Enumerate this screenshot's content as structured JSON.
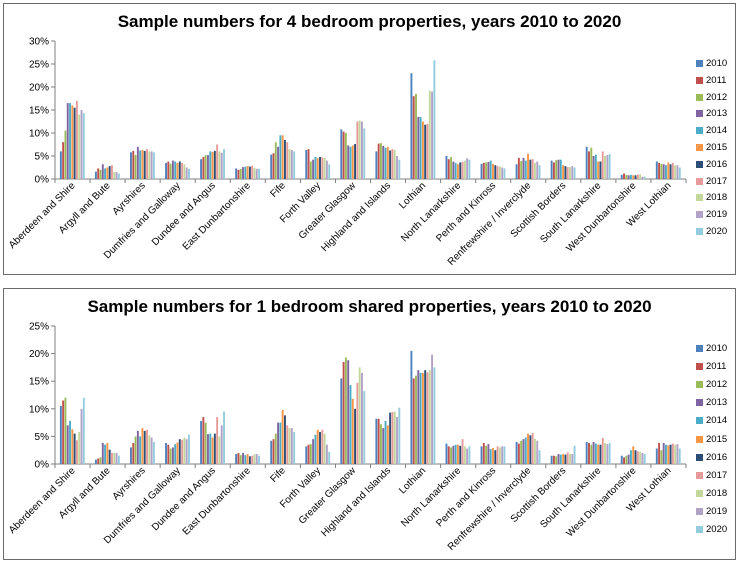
{
  "chart_data": [
    {
      "type": "bar",
      "title": "Sample numbers for 4 bedroom properties, years 2010 to 2020",
      "xlabel": "",
      "ylabel": "",
      "ylim": [
        0,
        30
      ],
      "yticks": [
        "0%",
        "5%",
        "10%",
        "15%",
        "20%",
        "25%",
        "30%"
      ],
      "legend_position": "right",
      "grid": false,
      "categories": [
        "Aberdeen and Shire",
        "Argyll and Bute",
        "Ayrshires",
        "Dumfries and Galloway",
        "Dundee and Angus",
        "East Dunbartonshire",
        "Fife",
        "Forth Valley",
        "Greater Glasgow",
        "Highland and Islands",
        "Lothian",
        "North Lanarkshire",
        "Perth and Kinross",
        "Renfrewshire / Inverclyde",
        "Scottish Borders",
        "South Lanarkshire",
        "West Dunbartonshire",
        "West Lothian"
      ],
      "series": [
        {
          "name": "2010",
          "color": "#4F81BD",
          "values": [
            6.0,
            1.6,
            5.8,
            3.5,
            4.3,
            2.3,
            5.3,
            6.3,
            10.8,
            6.0,
            23.0,
            5.0,
            3.3,
            3.2,
            4.0,
            7.0,
            0.9,
            3.8
          ]
        },
        {
          "name": "2011",
          "color": "#C0504D",
          "values": [
            8.0,
            2.3,
            6.1,
            3.8,
            4.8,
            2.0,
            5.6,
            6.5,
            10.3,
            7.7,
            18.0,
            4.3,
            3.5,
            4.6,
            3.6,
            6.0,
            1.2,
            3.5
          ]
        },
        {
          "name": "2012",
          "color": "#9BBB59",
          "values": [
            10.5,
            2.0,
            5.2,
            3.3,
            5.2,
            2.2,
            8.0,
            3.8,
            10.0,
            7.8,
            18.5,
            4.8,
            3.6,
            3.9,
            4.1,
            6.8,
            0.9,
            3.3
          ]
        },
        {
          "name": "2013",
          "color": "#8064A2",
          "values": [
            16.5,
            3.2,
            7.0,
            4.0,
            5.2,
            2.6,
            7.0,
            4.2,
            7.3,
            7.2,
            13.5,
            3.8,
            3.7,
            4.6,
            4.2,
            5.0,
            0.8,
            3.2
          ]
        },
        {
          "name": "2014",
          "color": "#4BACC6",
          "values": [
            16.5,
            2.3,
            6.2,
            3.8,
            6.0,
            2.7,
            9.5,
            4.8,
            7.0,
            6.8,
            13.5,
            3.5,
            4.0,
            4.0,
            4.2,
            5.3,
            0.9,
            3.0
          ]
        },
        {
          "name": "2015",
          "color": "#F79646",
          "values": [
            16.0,
            2.5,
            6.3,
            3.5,
            5.9,
            2.8,
            9.5,
            4.5,
            7.3,
            7.0,
            12.5,
            3.2,
            3.3,
            5.5,
            3.0,
            3.8,
            0.8,
            3.6
          ]
        },
        {
          "name": "2016",
          "color": "#2C4D75",
          "values": [
            15.5,
            2.8,
            6.1,
            3.8,
            6.1,
            2.7,
            8.5,
            4.8,
            7.6,
            6.2,
            11.8,
            3.6,
            3.0,
            4.2,
            2.8,
            3.8,
            0.8,
            3.2
          ]
        },
        {
          "name": "2017",
          "color": "#E79A9A",
          "values": [
            17.0,
            3.0,
            6.5,
            3.5,
            7.5,
            2.9,
            8.0,
            4.7,
            12.5,
            6.5,
            12.0,
            3.7,
            2.8,
            4.3,
            2.6,
            6.0,
            1.0,
            3.5
          ]
        },
        {
          "name": "2018",
          "color": "#C3D69B",
          "values": [
            14.0,
            1.5,
            6.0,
            3.2,
            6.0,
            2.4,
            6.5,
            4.6,
            12.7,
            6.3,
            19.2,
            4.0,
            2.7,
            3.5,
            2.6,
            5.0,
            1.0,
            3.0
          ]
        },
        {
          "name": "2019",
          "color": "#B3A2C7",
          "values": [
            15.0,
            1.5,
            6.0,
            2.5,
            5.7,
            2.2,
            6.3,
            4.0,
            12.5,
            5.0,
            19.0,
            4.5,
            2.5,
            3.8,
            2.8,
            5.2,
            0.5,
            3.0
          ]
        },
        {
          "name": "2020",
          "color": "#93CDDD",
          "values": [
            14.3,
            1.2,
            5.8,
            2.2,
            6.5,
            2.2,
            6.0,
            3.2,
            11.0,
            4.2,
            25.8,
            4.2,
            2.3,
            3.0,
            2.5,
            5.4,
            0.5,
            2.5
          ]
        }
      ]
    },
    {
      "type": "bar",
      "title": "Sample numbers for 1 bedroom shared properties, years 2010 to 2020",
      "xlabel": "",
      "ylabel": "",
      "ylim": [
        0,
        25
      ],
      "yticks": [
        "0%",
        "5%",
        "10%",
        "15%",
        "20%",
        "25%"
      ],
      "legend_position": "right",
      "grid": false,
      "categories": [
        "Aberdeen and Shire",
        "Argyll and Bute",
        "Ayrshires",
        "Dumfries and Galloway",
        "Dundee and Angus",
        "East Dunbartonshire",
        "Fife",
        "Forth Valley",
        "Greater Glasgow",
        "Highland and Islands",
        "Lothian",
        "North Lanarkshire",
        "Perth and Kinross",
        "Renfrewshire / Inverclyde",
        "Scottish Borders",
        "South Lanarkshire",
        "West Dunbartonshire",
        "West Lothian"
      ],
      "series": [
        {
          "name": "2010",
          "color": "#4F81BD",
          "values": [
            10.5,
            0.8,
            3.0,
            3.8,
            7.8,
            1.8,
            4.2,
            3.2,
            15.5,
            8.2,
            20.5,
            3.7,
            3.2,
            4.0,
            1.5,
            4.0,
            1.5,
            2.8
          ]
        },
        {
          "name": "2011",
          "color": "#C0504D",
          "values": [
            11.5,
            1.0,
            3.8,
            3.5,
            8.5,
            2.0,
            4.5,
            3.5,
            18.5,
            8.2,
            15.5,
            3.2,
            3.8,
            3.7,
            1.5,
            3.8,
            1.2,
            3.8
          ]
        },
        {
          "name": "2012",
          "color": "#9BBB59",
          "values": [
            12.0,
            1.2,
            5.0,
            2.8,
            7.5,
            1.6,
            5.5,
            3.6,
            19.3,
            7.2,
            16.0,
            3.0,
            3.3,
            4.2,
            1.4,
            3.5,
            1.5,
            2.5
          ]
        },
        {
          "name": "2013",
          "color": "#8064A2",
          "values": [
            7.0,
            3.8,
            6.0,
            3.0,
            5.4,
            2.0,
            7.5,
            4.5,
            18.8,
            6.5,
            17.0,
            3.3,
            3.6,
            4.5,
            1.8,
            4.0,
            1.7,
            3.8
          ]
        },
        {
          "name": "2014",
          "color": "#4BACC6",
          "values": [
            7.8,
            3.5,
            5.0,
            3.6,
            5.5,
            1.6,
            7.5,
            5.3,
            14.3,
            7.8,
            16.5,
            3.5,
            2.7,
            4.8,
            1.7,
            3.7,
            2.5,
            3.5
          ]
        },
        {
          "name": "2015",
          "color": "#F79646",
          "values": [
            6.3,
            3.8,
            6.5,
            3.9,
            4.8,
            1.8,
            9.8,
            6.2,
            11.8,
            7.0,
            16.5,
            3.5,
            2.9,
            5.5,
            1.8,
            3.5,
            3.2,
            3.4
          ]
        },
        {
          "name": "2016",
          "color": "#2C4D75",
          "values": [
            5.5,
            2.6,
            6.0,
            4.5,
            5.5,
            1.4,
            8.8,
            5.8,
            10.0,
            9.3,
            17.0,
            3.3,
            2.5,
            5.2,
            1.7,
            3.5,
            2.5,
            3.5
          ]
        },
        {
          "name": "2017",
          "color": "#E79A9A",
          "values": [
            4.3,
            2.0,
            6.2,
            4.4,
            8.5,
            1.5,
            7.0,
            6.2,
            14.7,
            9.4,
            16.6,
            4.5,
            3.2,
            5.6,
            2.1,
            4.7,
            2.3,
            3.7
          ]
        },
        {
          "name": "2018",
          "color": "#C3D69B",
          "values": [
            5.8,
            2.0,
            5.2,
            4.8,
            5.0,
            1.8,
            6.5,
            5.5,
            17.5,
            9.5,
            17.0,
            3.2,
            3.0,
            4.6,
            1.8,
            3.8,
            2.2,
            3.5
          ]
        },
        {
          "name": "2019",
          "color": "#B3A2C7",
          "values": [
            10.0,
            2.0,
            4.8,
            4.5,
            7.0,
            1.8,
            6.5,
            3.5,
            16.5,
            8.5,
            19.8,
            2.8,
            3.2,
            4.2,
            1.8,
            3.6,
            2.0,
            3.6
          ]
        },
        {
          "name": "2020",
          "color": "#93CDDD",
          "values": [
            12.0,
            1.5,
            4.0,
            5.3,
            9.5,
            1.5,
            5.8,
            2.2,
            13.2,
            10.2,
            17.5,
            3.2,
            3.2,
            2.5,
            3.3,
            3.8,
            1.8,
            2.8
          ]
        }
      ]
    }
  ]
}
